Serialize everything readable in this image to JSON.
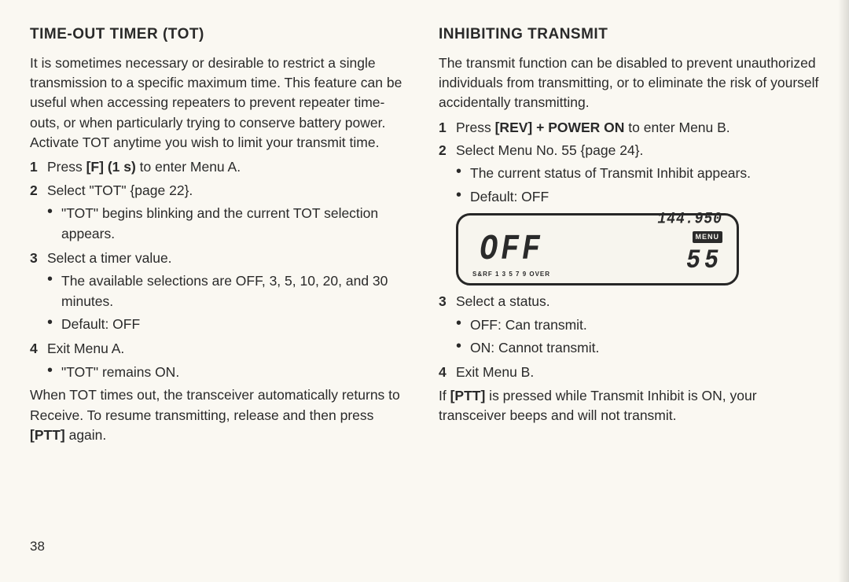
{
  "page_number": "38",
  "left": {
    "heading": "TIME-OUT TIMER (TOT)",
    "intro": "It is sometimes necessary or desirable to restrict a single transmission to a specific maximum time. This feature can be useful when accessing repeaters to prevent repeater time-outs, or when particularly trying to conserve battery power. Activate TOT anytime you wish to limit your transmit time.",
    "s1_a": "Press ",
    "s1_b": "[F] (1 s)",
    "s1_c": " to enter Menu A.",
    "s2": "Select \"TOT\" {page 22}.",
    "s2_b1": "\"TOT\" begins blinking and the current TOT selection appears.",
    "s3": "Select a timer value.",
    "s3_b1": "The available selections are OFF, 3, 5, 10, 20, and 30 minutes.",
    "s3_b2": "Default: OFF",
    "s4": "Exit Menu A.",
    "s4_b1": "\"TOT\" remains ON.",
    "outro_a": "When TOT times out, the transceiver automatically returns to Receive. To resume transmitting, release and then press ",
    "outro_b": "[PTT]",
    "outro_c": " again."
  },
  "right": {
    "heading": "INHIBITING TRANSMIT",
    "intro": "The transmit function can be disabled to prevent unauthorized individuals from transmitting, or to eliminate the risk of yourself accidentally transmitting.",
    "s1_a": "Press ",
    "s1_b": "[REV] + POWER ON",
    "s1_c": " to enter Menu B.",
    "s2": "Select Menu No. 55 {page 24}.",
    "s2_b1": "The current status of Transmit Inhibit appears.",
    "s2_b2": "Default: OFF",
    "s3": "Select a status.",
    "s3_b1": "OFF: Can transmit.",
    "s3_b2": "ON: Cannot transmit.",
    "s4": "Exit Menu B.",
    "outro_a": "If ",
    "outro_b": "[PTT]",
    "outro_c": " is pressed while Transmit Inhibit is ON, your transceiver beeps and will not transmit."
  },
  "lcd": {
    "main": "OFF",
    "freq": "144.950",
    "menu_badge": "MENU",
    "menu_no": "55",
    "tiny": "S&RF   1  3  5  7  9 OVER"
  }
}
